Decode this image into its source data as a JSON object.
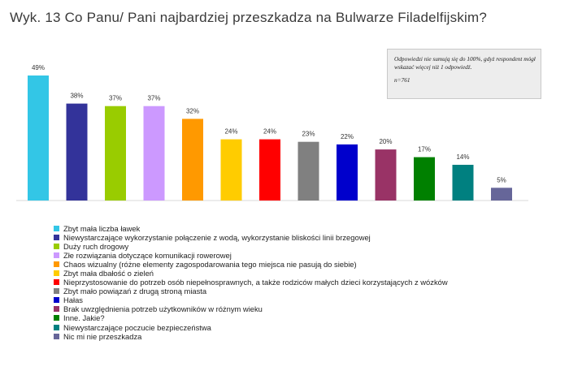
{
  "title": "Wyk. 13  Co Panu/ Pani najbardziej przeszkadza na Bulwarze Filadelfijskim?",
  "note": {
    "text": "Odpowiedzi nie sumują się do 100%, gdyż respondent mógł wskazać więcej niż 1 odpowiedź.",
    "sample": "n=761"
  },
  "chart_data": {
    "type": "bar",
    "categories": [
      "Zbyt mała liczba ławek",
      "Niewystarczające wykorzystanie połączenie z wodą, wykorzystanie bliskości linii brzegowej",
      "Duży ruch drogowy",
      "Złe rozwiązania dotyczące komunikacji rowerowej",
      "Chaos wizualny (różne elementy zagospodarowania tego miejsca nie pasują do siebie)",
      "Zbyt mała dbałość o zieleń",
      "Nieprzystosowanie do potrzeb osób niepełnosprawnych, a także rodziców małych dzieci korzystających z wózków",
      "Zbyt mało powiązań z drugą stroną miasta",
      "Hałas",
      "Brak uwzględnienia potrzeb użytkowników w różnym wieku",
      "Inne. Jakie?",
      "Niewystarczające poczucie bezpieczeństwa",
      "Nic mi nie przeszkadza"
    ],
    "values": [
      49,
      38,
      37,
      37,
      32,
      24,
      24,
      23,
      22,
      20,
      17,
      14,
      5
    ],
    "value_labels": [
      "49%",
      "38%",
      "37%",
      "37%",
      "32%",
      "24%",
      "24%",
      "23%",
      "22%",
      "20%",
      "17%",
      "14%",
      "5%"
    ],
    "colors": [
      "#33c6e6",
      "#33339a",
      "#99cc00",
      "#cc99ff",
      "#ff9900",
      "#ffcc00",
      "#ff0000",
      "#808080",
      "#0000cc",
      "#993366",
      "#008000",
      "#008080",
      "#666699"
    ],
    "ylim": [
      0,
      50
    ],
    "grid": false,
    "legend_position": "bottom"
  }
}
